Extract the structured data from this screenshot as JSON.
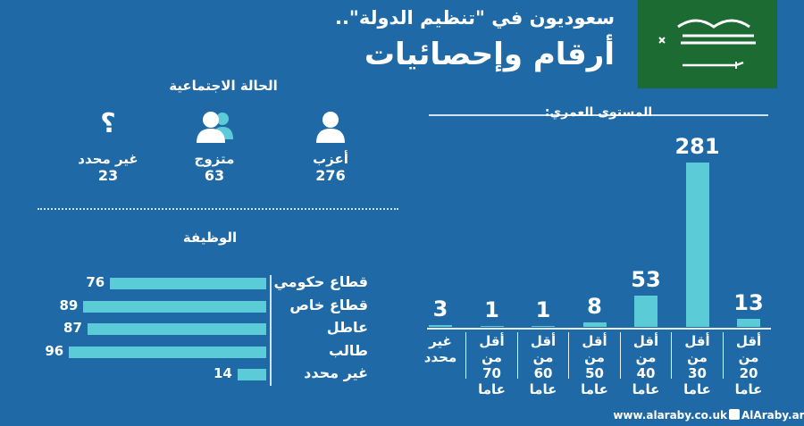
{
  "header": {
    "subtitle": "سعوديون في \"تنظيم الدولة\"..",
    "title": "أرقام وإحصائيات"
  },
  "marital": {
    "title": "الحالة الاجتماعية",
    "items": [
      {
        "label": "أعزب",
        "value": 276
      },
      {
        "label": "متزوج",
        "value": 63
      },
      {
        "label": "غير محدد",
        "value": 23,
        "icon": "؟"
      }
    ]
  },
  "chart_data": [
    {
      "type": "bar",
      "title": "المستوى العمري:",
      "categories": [
        "أقل من\n20\nعاما",
        "أقل من\n30\nعاما",
        "أقل من\n40\nعاما",
        "أقل من\n50\nعاما",
        "أقل من\n60\nعاما",
        "أقل من\n70\nعاما",
        "غير\nمحدد"
      ],
      "values": [
        13,
        281,
        53,
        8,
        1,
        1,
        3
      ],
      "color": "#5ccbd8"
    },
    {
      "type": "hbar",
      "title": "الوظيفة",
      "categories": [
        "قطاع حكومي",
        "قطاع خاص",
        "عاطل",
        "طالب",
        "غير محدد"
      ],
      "values": [
        76,
        89,
        87,
        96,
        14
      ],
      "color": "#5ccbd8"
    }
  ],
  "footer": {
    "website": "www.alaraby.co.uk",
    "social": "AlAraby.ar"
  }
}
